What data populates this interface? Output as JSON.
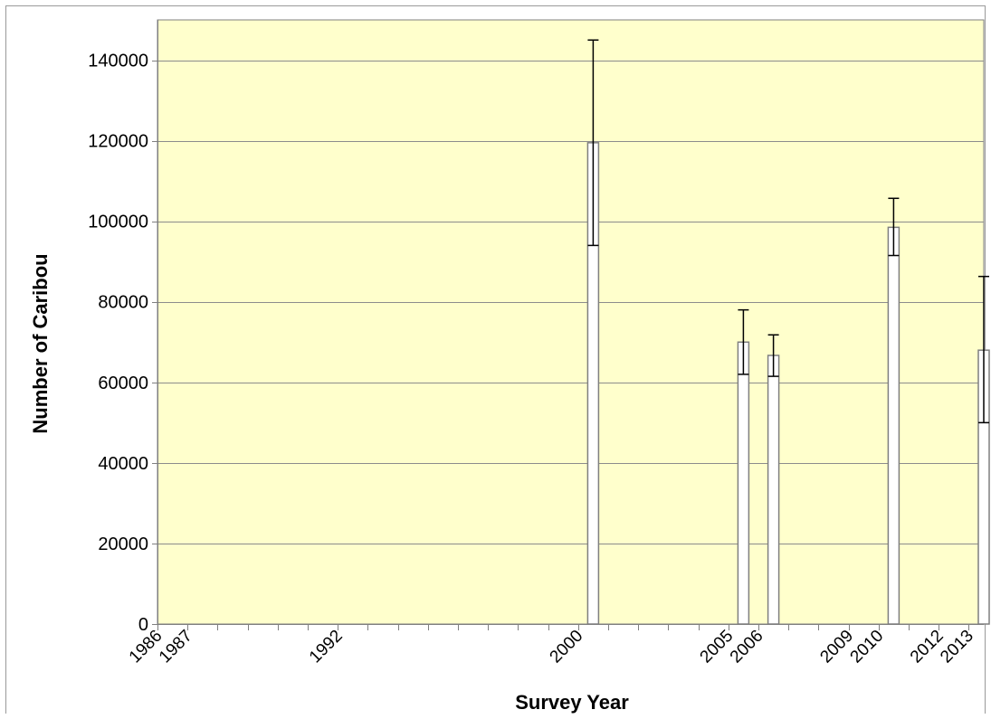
{
  "chart_data": {
    "type": "bar",
    "xlabel": "Survey Year",
    "ylabel": "Number of Caribou",
    "ylim": [
      0,
      150000
    ],
    "yticks": [
      0,
      20000,
      40000,
      60000,
      80000,
      100000,
      120000,
      140000
    ],
    "xlim": [
      1986,
      2013.5
    ],
    "tick_labels": [
      "1986",
      "1987",
      "1992",
      "2000",
      "2005",
      "2006",
      "2009",
      "2010",
      "2012",
      "2013"
    ],
    "grid": "horizontal",
    "bars": [
      {
        "year": 2000,
        "value": 119500,
        "err_low": 94000,
        "err_high": 145000
      },
      {
        "year": 2005,
        "value": 70000,
        "err_low": 62000,
        "err_high": 78000
      },
      {
        "year": 2006,
        "value": 66700,
        "err_low": 61500,
        "err_high": 71800
      },
      {
        "year": 2010,
        "value": 98500,
        "err_low": 91500,
        "err_high": 105700
      },
      {
        "year": 2013,
        "value": 68000,
        "err_low": 50000,
        "err_high": 86300
      }
    ],
    "colors": {
      "plot_bg": "#ffffcc",
      "bar_fill": "#ffffff",
      "bar_stroke": "#7f7f7f",
      "grid": "#8c8c8c",
      "error_bar": "#000000"
    }
  }
}
